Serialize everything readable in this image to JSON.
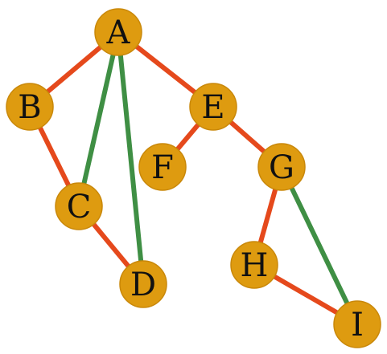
{
  "colors": {
    "node_fill": "#DE9B10",
    "node_stroke": "#C9880A",
    "tree_edge": "#E5491C",
    "back_edge": "#3F8F44",
    "label": "#111111"
  },
  "nodes": [
    {
      "id": "A",
      "label": "A"
    },
    {
      "id": "B",
      "label": "B"
    },
    {
      "id": "C",
      "label": "C"
    },
    {
      "id": "D",
      "label": "D"
    },
    {
      "id": "E",
      "label": "E"
    },
    {
      "id": "F",
      "label": "F"
    },
    {
      "id": "G",
      "label": "G"
    },
    {
      "id": "H",
      "label": "H"
    },
    {
      "id": "I",
      "label": "I"
    }
  ],
  "edges": [
    {
      "from": "A",
      "to": "B",
      "kind": "tree"
    },
    {
      "from": "B",
      "to": "C",
      "kind": "tree"
    },
    {
      "from": "C",
      "to": "D",
      "kind": "tree"
    },
    {
      "from": "A",
      "to": "E",
      "kind": "tree"
    },
    {
      "from": "E",
      "to": "F",
      "kind": "tree"
    },
    {
      "from": "E",
      "to": "G",
      "kind": "tree"
    },
    {
      "from": "G",
      "to": "H",
      "kind": "tree"
    },
    {
      "from": "H",
      "to": "I",
      "kind": "tree"
    },
    {
      "from": "A",
      "to": "C",
      "kind": "back"
    },
    {
      "from": "A",
      "to": "D",
      "kind": "back"
    },
    {
      "from": "G",
      "to": "I",
      "kind": "back"
    }
  ]
}
